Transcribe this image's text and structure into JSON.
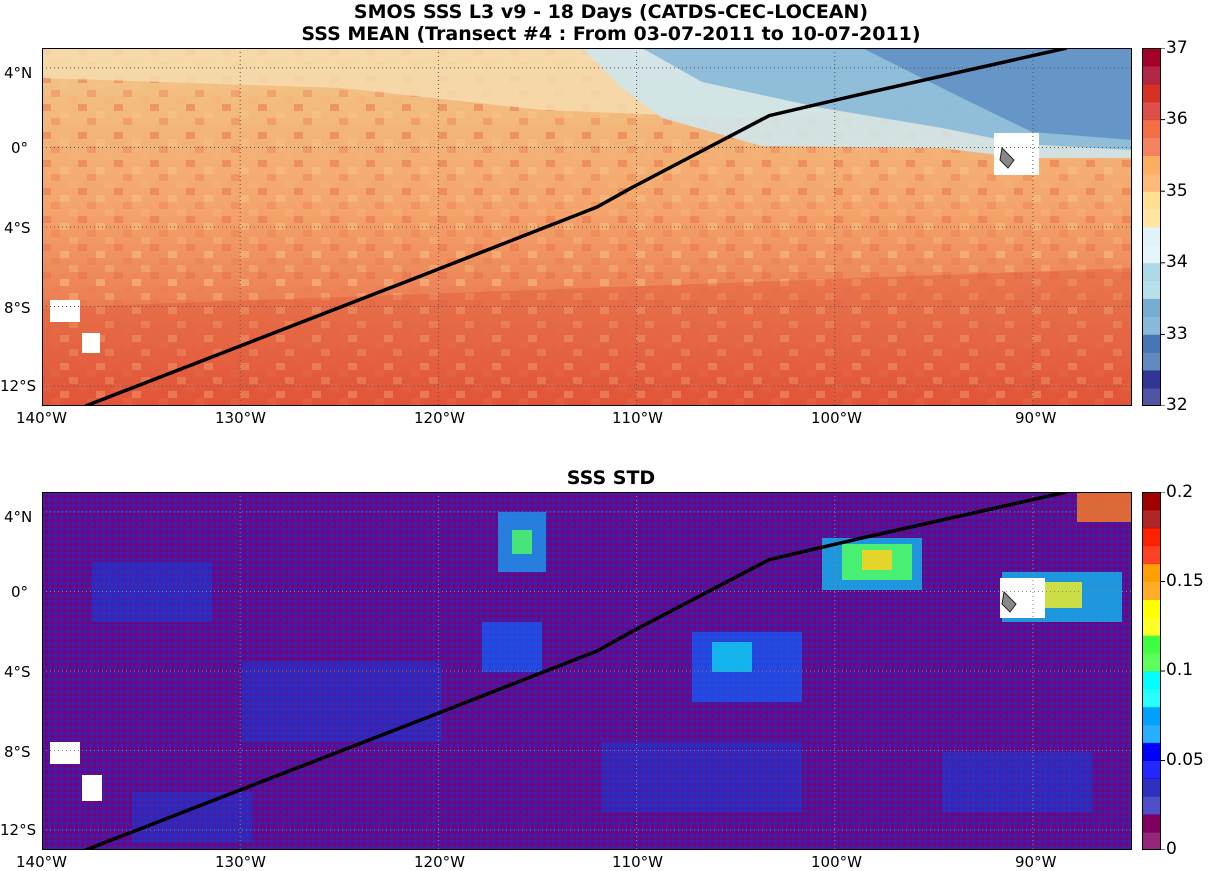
{
  "titles": {
    "line1": "SMOS SSS L3 v9 - 18 Days (CATDS-CEC-LOCEAN)",
    "line2": "SSS MEAN (Transect #4 : From 03-07-2011 to 10-07-2011)",
    "panel2": "SSS STD"
  },
  "map": {
    "lon_range": [
      -140,
      -85
    ],
    "lat_range": [
      -13,
      5
    ],
    "lon_ticks": [
      "140°W",
      "130°W",
      "120°W",
      "110°W",
      "100°W",
      "90°W"
    ],
    "lat_ticks": [
      "4°N",
      "0°",
      "4°S",
      "8°S",
      "12°S"
    ],
    "transect": [
      [
        -137.8,
        -13
      ],
      [
        -121.5,
        -6.7
      ],
      [
        -112,
        -3
      ],
      [
        -110.2,
        -2
      ],
      [
        -103.3,
        1.6
      ],
      [
        -99,
        2.6
      ],
      [
        -88.3,
        5
      ]
    ],
    "land": [
      "Galapagos Islands",
      "Marquesas Islands"
    ]
  },
  "colorbars": {
    "mean": {
      "ticks": [
        "37",
        "36",
        "35",
        "34",
        "33",
        "32"
      ],
      "min": 32,
      "max": 37,
      "colors": [
        "#313695",
        "#4575b4",
        "#74add1",
        "#abd9e9",
        "#e0f3f8",
        "#fee090",
        "#fdae61",
        "#f46d43",
        "#d73027",
        "#a50026"
      ]
    },
    "std": {
      "ticks": [
        "0.2",
        "0.15",
        "0.1",
        "0.05",
        "0"
      ],
      "min": 0,
      "max": 0.2,
      "colors": [
        "#800060",
        "#3030c0",
        "#0000ff",
        "#00a0ff",
        "#00ffff",
        "#40ff40",
        "#ffff00",
        "#ffa000",
        "#ff2000",
        "#a00000"
      ]
    }
  }
}
